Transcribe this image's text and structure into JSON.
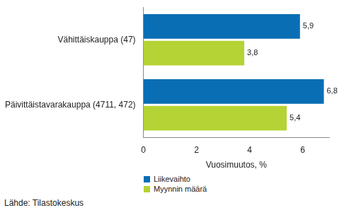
{
  "chart_data": {
    "type": "bar",
    "orientation": "horizontal",
    "categories": [
      "Vähittäiskauppa (47)",
      "Päivittäistavarakauppa (4711, 472)"
    ],
    "series": [
      {
        "name": "Liikevaihto",
        "color": "#0a6eb4",
        "values": [
          5.9,
          6.8
        ],
        "value_labels": [
          "5,9",
          "6,8"
        ]
      },
      {
        "name": "Myynnin määrä",
        "color": "#b5d334",
        "values": [
          3.8,
          5.4
        ],
        "value_labels": [
          "3,8",
          "5,4"
        ]
      }
    ],
    "x_label": "Vuosimuutos, %",
    "xlim": [
      0,
      7
    ],
    "xticks": [
      0,
      2,
      4,
      6
    ],
    "grid": false,
    "legend": "bottom",
    "data_labels": true,
    "annotations": [
      "Lähde: Tilastokeskus"
    ]
  }
}
